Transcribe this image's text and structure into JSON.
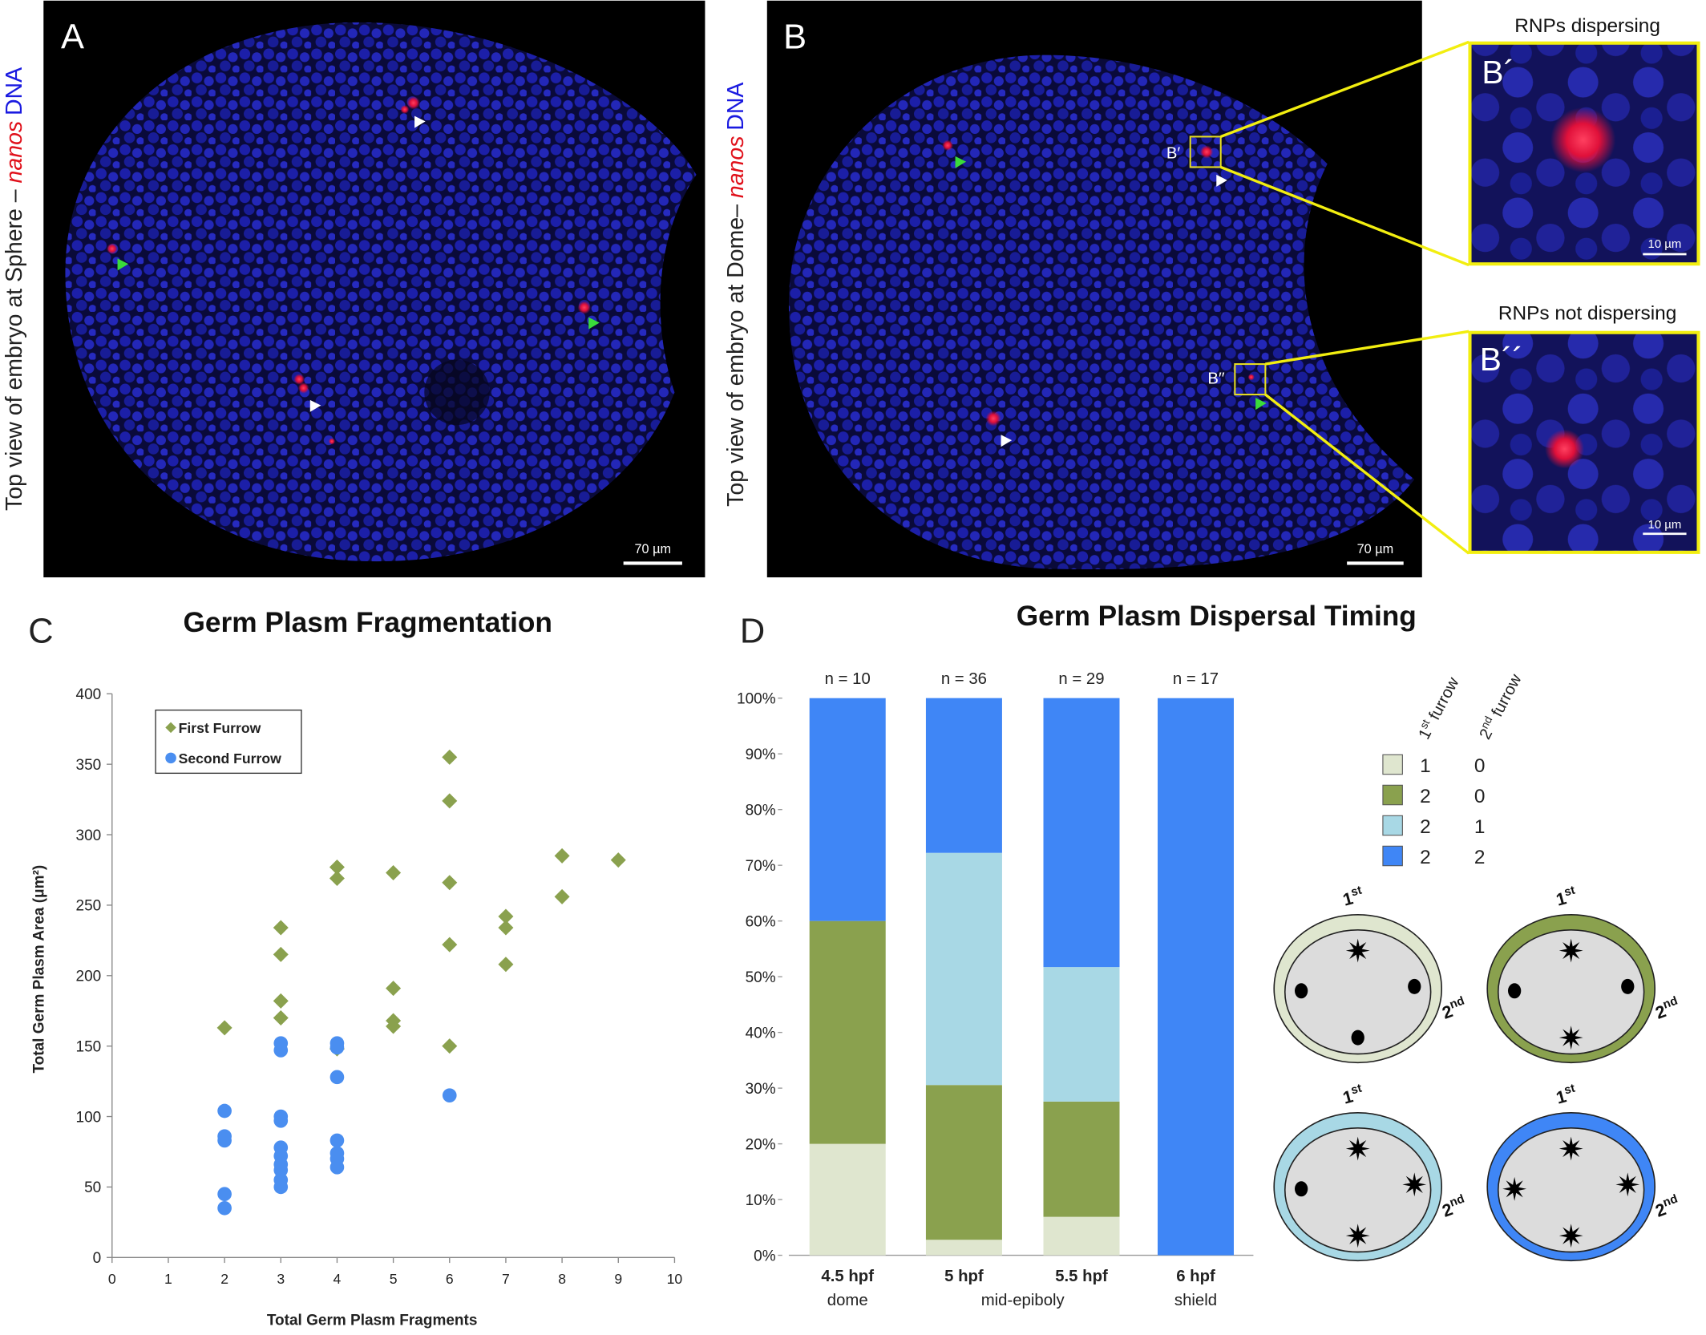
{
  "panels": {
    "A": {
      "letter": "A",
      "ylabel": [
        "Top view of embryo at Sphere – ",
        "nanos",
        "DNA"
      ],
      "scale": "70 µm"
    },
    "B": {
      "letter": "B",
      "ylabel": [
        "Top view of embryo at Dome– ",
        "nanos",
        "DNA"
      ],
      "scale": "70 µm",
      "box1": "B′",
      "box2": "B′′"
    },
    "B1": {
      "letter": "B´",
      "title": "RNPs dispersing",
      "scale": "10 µm"
    },
    "B2": {
      "letter": "B´´",
      "title": "RNPs not dispersing",
      "scale": "10 µm"
    },
    "C": {
      "letter": "C"
    },
    "D": {
      "letter": "D"
    }
  },
  "chart_data": [
    {
      "type": "scatter",
      "title": "Germ Plasm Fragmentation",
      "x_label": "Total Germ Plasm Fragments",
      "y_label": "Total Germ Plasm Area (μm²)",
      "xlim": [
        0,
        10
      ],
      "xticks": [
        0,
        1,
        2,
        3,
        4,
        5,
        6,
        7,
        8,
        9,
        10
      ],
      "ylim": [
        0,
        400
      ],
      "yticks": [
        0,
        50,
        100,
        150,
        200,
        250,
        300,
        350,
        400
      ],
      "series": [
        {
          "name": "First Furrow",
          "color": "#8aa14e",
          "marker": "diamond",
          "x": [
            2,
            3,
            3,
            3,
            3,
            4,
            4,
            4,
            5,
            5,
            5,
            5,
            6,
            6,
            6,
            6,
            6,
            7,
            7,
            7,
            8,
            8,
            9
          ],
          "values": [
            163,
            234,
            215,
            182,
            170,
            277,
            269,
            148,
            273,
            191,
            168,
            164,
            355,
            324,
            266,
            222,
            150,
            242,
            234,
            208,
            285,
            256,
            282
          ]
        },
        {
          "name": "Second Furrow",
          "color": "#4a8ef0",
          "marker": "circle",
          "x": [
            2,
            2,
            2,
            2,
            2,
            3,
            3,
            3,
            3,
            3,
            3,
            3,
            3,
            3,
            3,
            4,
            4,
            4,
            4,
            4,
            4,
            4,
            6
          ],
          "values": [
            104,
            86,
            83,
            45,
            35,
            152,
            147,
            100,
            97,
            78,
            72,
            66,
            62,
            55,
            50,
            152,
            149,
            128,
            83,
            74,
            70,
            64,
            115
          ]
        }
      ]
    },
    {
      "type": "stacked_bar",
      "title": "Germ Plasm Dispersal Timing",
      "categories": [
        "4.5 hpf",
        "5 hpf",
        "5.5 hpf",
        "6 hpf"
      ],
      "stages": [
        "dome",
        "mid-epiboly",
        "shield"
      ],
      "n_labels": [
        "n = 10",
        "n = 36",
        "n = 29",
        "n = 17"
      ],
      "ylim": [
        0,
        100
      ],
      "yticks": [
        {
          "value": 0,
          "label": "0%"
        },
        {
          "value": 10,
          "label": "10%"
        },
        {
          "value": 20,
          "label": "20%"
        },
        {
          "value": 30,
          "label": "30%"
        },
        {
          "value": 40,
          "label": "40%"
        },
        {
          "value": 50,
          "label": "50%"
        },
        {
          "value": 60,
          "label": "60%"
        },
        {
          "value": 70,
          "label": "70%"
        },
        {
          "value": 80,
          "label": "80%"
        },
        {
          "value": 90,
          "label": "90%"
        },
        {
          "value": 100,
          "label": "100%"
        }
      ],
      "legend_header": [
        {
          "base": "1",
          "sup": "st",
          "rest": " furrow"
        },
        {
          "base": "2",
          "sup": "nd",
          "rest": " furrow"
        }
      ],
      "series": [
        {
          "name": "1",
          "second": "0",
          "color": "#dfe6cf",
          "values": [
            20,
            2.78,
            6.9,
            0
          ]
        },
        {
          "name": "2",
          "second": "0",
          "color": "#8aa14e",
          "values": [
            40,
            27.78,
            20.69,
            0
          ]
        },
        {
          "name": "2",
          "second": "1",
          "color": "#a8d8e5",
          "values": [
            0,
            41.67,
            24.14,
            0
          ]
        },
        {
          "name": "2",
          "second": "2",
          "color": "#3f86f6",
          "values": [
            40,
            27.78,
            48.28,
            100
          ]
        }
      ],
      "diagram_labels": {
        "top": "1",
        "top_sup": "st",
        "right": "2",
        "right_sup": "nd"
      }
    }
  ]
}
